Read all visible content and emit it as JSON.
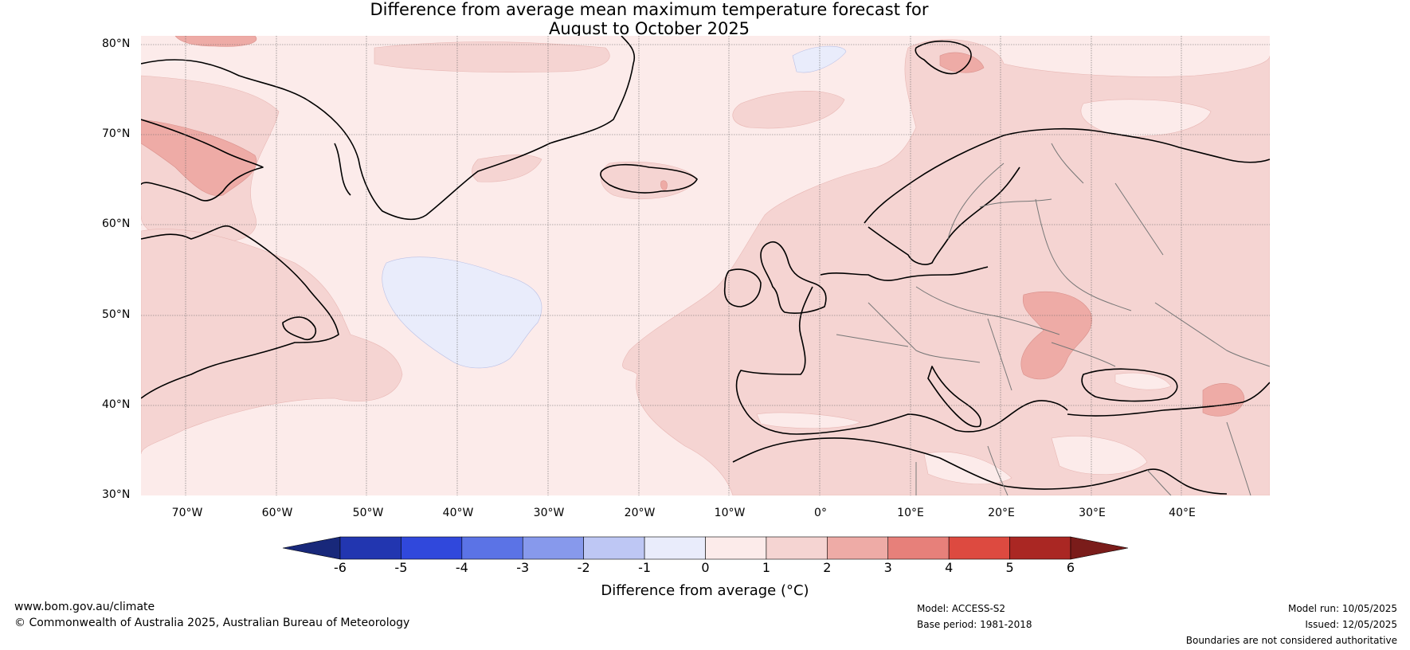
{
  "title_line1": "Difference from average mean maximum temperature forecast for",
  "title_line2": "August to October 2025",
  "lat_labels": [
    "80°N",
    "70°N",
    "60°N",
    "50°N",
    "40°N",
    "30°N"
  ],
  "lon_labels": [
    "70°W",
    "60°W",
    "50°W",
    "40°W",
    "30°W",
    "20°W",
    "10°W",
    "0°",
    "10°E",
    "20°E",
    "30°E",
    "40°E"
  ],
  "colorbar": {
    "label": "Difference from average (°C)",
    "ticks": [
      "-6",
      "-5",
      "-4",
      "-3",
      "-2",
      "-1",
      "0",
      "1",
      "2",
      "3",
      "4",
      "5",
      "6"
    ],
    "colors": [
      "#2236b0",
      "#3048dc",
      "#5b73e6",
      "#8799ec",
      "#bec7f4",
      "#e9ecfb",
      "#fcebea",
      "#f5d4d2",
      "#eeaba6",
      "#e7807a",
      "#dd4a40",
      "#aa2723"
    ],
    "under_color": "#18287a",
    "over_color": "#7a1c1a"
  },
  "footer": {
    "website": "www.bom.gov.au/climate",
    "copyright": "© Commonwealth of Australia 2025, Australian Bureau of Meteorology",
    "model": "Model: ACCESS-S2",
    "base_period": "Base period: 1981-2018",
    "model_run": "Model run: 10/05/2025",
    "issued": "Issued: 12/05/2025",
    "disclaimer": "Boundaries are not considered authoritative"
  },
  "colors": {
    "background_anomaly": "#fcebea",
    "anomaly_1_2": "#f5d4d2",
    "anomaly_2_3": "#eeaba6",
    "anomaly_neg_0_1": "#e9ecfb",
    "coastline": "#000000",
    "borders": "#777777",
    "gridline": "#555555"
  }
}
